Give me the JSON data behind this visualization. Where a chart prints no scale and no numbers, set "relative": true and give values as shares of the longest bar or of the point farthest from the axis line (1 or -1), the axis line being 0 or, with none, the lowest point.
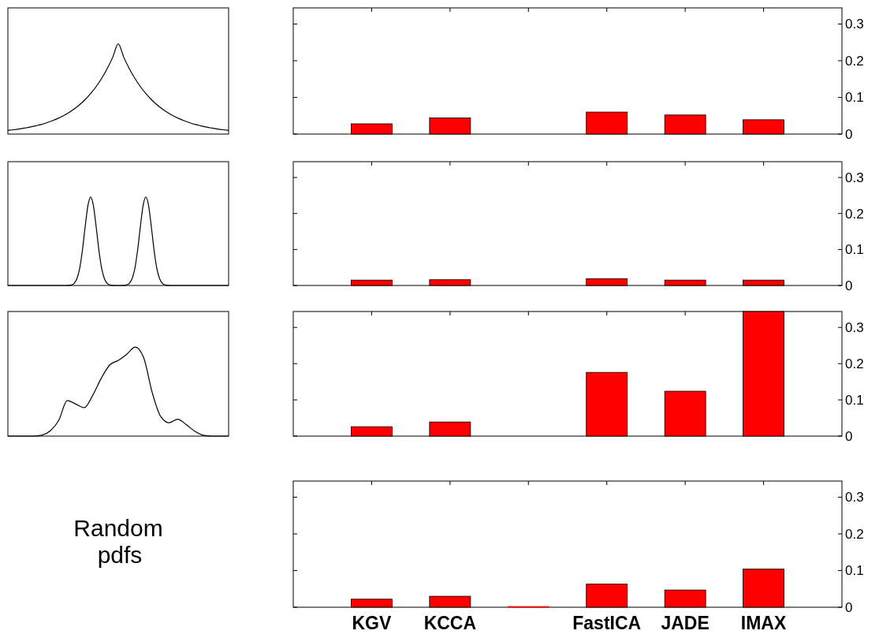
{
  "chart_data": [
    {
      "type": "line",
      "relative": true,
      "tick_labels": false,
      "color": "#000000",
      "categories": [
        null,
        null,
        null,
        null,
        null,
        null,
        null,
        null,
        null,
        null,
        null,
        null,
        null,
        null,
        null,
        null,
        null,
        null,
        null,
        null,
        null,
        null,
        null,
        null,
        null,
        null,
        null,
        null,
        null,
        null,
        null,
        null,
        null,
        null,
        null,
        null,
        null,
        null,
        null,
        null,
        null
      ],
      "values": [
        0.041,
        0.048,
        0.056,
        0.066,
        0.077,
        0.091,
        0.106,
        0.125,
        0.147,
        0.172,
        0.202,
        0.237,
        0.278,
        0.326,
        0.383,
        0.449,
        0.527,
        0.619,
        0.726,
        0.852,
        1,
        0.852,
        0.726,
        0.619,
        0.527,
        0.449,
        0.383,
        0.326,
        0.278,
        0.237,
        0.202,
        0.172,
        0.147,
        0.125,
        0.106,
        0.091,
        0.077,
        0.066,
        0.056,
        0.048,
        0.041
      ]
    },
    {
      "type": "bar",
      "tick_labels": "y",
      "color": "#ff0000",
      "categories": [
        "KGV",
        "KCCA",
        null,
        "FastICA",
        "JADE",
        "IMAX"
      ],
      "values": [
        0.028,
        0.044,
        0,
        0.06,
        0.052,
        0.039
      ],
      "ylim": [
        0,
        0.344
      ],
      "yticks": [
        0,
        0.1,
        0.2,
        0.3
      ]
    },
    {
      "type": "line",
      "relative": true,
      "tick_labels": false,
      "color": "#000000",
      "categories": [
        null,
        null,
        null,
        null,
        null,
        null,
        null,
        null,
        null,
        null,
        null,
        null,
        null,
        null,
        null,
        null,
        null,
        null,
        null,
        null,
        null,
        null,
        null,
        null,
        null,
        null,
        null,
        null,
        null,
        null,
        null,
        null,
        null,
        null,
        null,
        null,
        null,
        null,
        null,
        null,
        null,
        null,
        null,
        null,
        null,
        null,
        null,
        null,
        null,
        null,
        null,
        null,
        null,
        null,
        null,
        null,
        null,
        null,
        null,
        null,
        null,
        null,
        null,
        null,
        null,
        null,
        null,
        null,
        null,
        null,
        null,
        null,
        null,
        null,
        null,
        null,
        null,
        null,
        null,
        null,
        null
      ],
      "values": [
        0,
        0,
        0,
        0,
        0,
        0,
        0,
        0,
        0,
        0,
        0,
        0,
        0,
        0,
        0,
        0,
        0,
        0,
        0,
        0,
        0,
        0,
        0.001,
        0.006,
        0.024,
        0.076,
        0.191,
        0.395,
        0.662,
        0.902,
        1,
        0.902,
        0.662,
        0.395,
        0.191,
        0.076,
        0.024,
        0.006,
        0.001,
        0,
        0,
        0,
        0.001,
        0.006,
        0.024,
        0.076,
        0.191,
        0.395,
        0.662,
        0.902,
        1,
        0.902,
        0.662,
        0.395,
        0.191,
        0.076,
        0.024,
        0.006,
        0.001,
        0,
        0,
        0,
        0,
        0,
        0,
        0,
        0,
        0,
        0,
        0,
        0,
        0,
        0,
        0,
        0,
        0,
        0,
        0,
        0,
        0,
        0
      ]
    },
    {
      "type": "bar",
      "tick_labels": "y",
      "color": "#ff0000",
      "categories": [
        "KGV",
        "KCCA",
        null,
        "FastICA",
        "JADE",
        "IMAX"
      ],
      "values": [
        0.015,
        0.016,
        0,
        0.019,
        0.015,
        0.015
      ],
      "ylim": [
        0,
        0.344
      ],
      "yticks": [
        0,
        0.1,
        0.2,
        0.3
      ]
    },
    {
      "type": "line",
      "relative": true,
      "tick_labels": false,
      "color": "#000000",
      "categories": [
        null,
        null,
        null,
        null,
        null,
        null,
        null,
        null,
        null,
        null,
        null,
        null,
        null,
        null,
        null,
        null,
        null,
        null,
        null,
        null,
        null,
        null,
        null,
        null,
        null,
        null,
        null
      ],
      "values": [
        0,
        0,
        0,
        0,
        0.01,
        0.06,
        0.18,
        0.4,
        0.36,
        0.32,
        0.46,
        0.65,
        0.8,
        0.85,
        0.92,
        1,
        0.88,
        0.49,
        0.22,
        0.15,
        0.19,
        0.13,
        0.056,
        0.01,
        0,
        0,
        0
      ]
    },
    {
      "type": "bar",
      "tick_labels": "y",
      "color": "#ff0000",
      "categories": [
        "KGV",
        "KCCA",
        null,
        "FastICA",
        "JADE",
        "IMAX"
      ],
      "values": [
        0.026,
        0.039,
        0,
        0.176,
        0.124,
        0.344
      ],
      "ylim": [
        0,
        0.344
      ],
      "yticks": [
        0,
        0.1,
        0.2,
        0.3
      ]
    },
    {
      "type": "bar",
      "color": "#ff0000",
      "categories": [
        "KGV",
        "KCCA",
        null,
        "FastICA",
        "JADE",
        "IMAX"
      ],
      "values": [
        0.022,
        0.03,
        0.002,
        0.063,
        0.047,
        0.104
      ],
      "ylim": [
        0,
        0.344
      ],
      "yticks": [
        0,
        0.1,
        0.2,
        0.3
      ],
      "annotations": [
        "Random pdfs"
      ]
    }
  ]
}
